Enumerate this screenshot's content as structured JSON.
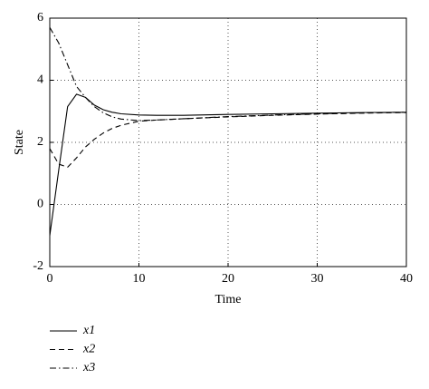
{
  "chart_data": {
    "type": "line",
    "xlabel": "Time",
    "ylabel": "State",
    "x": [
      0,
      1,
      2,
      3,
      4,
      5,
      6,
      7,
      8,
      10,
      12,
      15,
      20,
      25,
      30,
      35,
      40
    ],
    "series": [
      {
        "name": "x1",
        "color": "#000000",
        "dash": "solid",
        "values": [
          -1,
          1.1,
          3.15,
          3.55,
          3.45,
          3.2,
          3.05,
          2.97,
          2.92,
          2.88,
          2.87,
          2.87,
          2.9,
          2.92,
          2.94,
          2.96,
          2.97
        ]
      },
      {
        "name": "x2",
        "color": "#000000",
        "dash": "dashed",
        "values": [
          1.8,
          1.3,
          1.2,
          1.5,
          1.85,
          2.1,
          2.3,
          2.45,
          2.55,
          2.68,
          2.72,
          2.76,
          2.82,
          2.87,
          2.91,
          2.94,
          2.96
        ]
      },
      {
        "name": "x3",
        "color": "#000000",
        "dash": "dashdot",
        "values": [
          5.7,
          5.2,
          4.5,
          3.8,
          3.45,
          3.15,
          2.95,
          2.82,
          2.75,
          2.7,
          2.72,
          2.76,
          2.83,
          2.88,
          2.92,
          2.95,
          2.97
        ]
      }
    ],
    "xlim": [
      0,
      40
    ],
    "xticks": [
      0,
      10,
      20,
      30,
      40
    ],
    "ylim": [
      -2,
      6
    ],
    "yticks": [
      -2,
      0,
      2,
      4,
      6
    ],
    "grid": true,
    "legend": "below"
  }
}
